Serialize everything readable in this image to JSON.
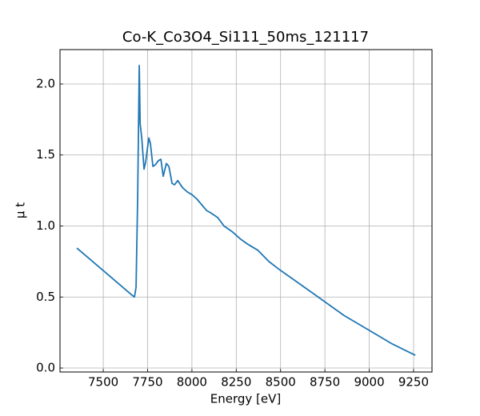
{
  "chart_data": {
    "type": "line",
    "title": "Co-K_Co3O4_Si111_50ms_121117",
    "x_label": "Energy [eV]",
    "y_label": "μ t",
    "x": [
      7351,
      7662,
      7676,
      7685,
      7694,
      7703,
      7708,
      7717,
      7730,
      7739,
      7757,
      7766,
      7780,
      7793,
      7811,
      7825,
      7838,
      7856,
      7870,
      7888,
      7902,
      7920,
      7947,
      7974,
      8001,
      8028,
      8055,
      8082,
      8109,
      8145,
      8181,
      8227,
      8272,
      8317,
      8371,
      8434,
      8497,
      8588,
      8723,
      8858,
      8994,
      9129,
      9260
    ],
    "series": [
      {
        "name": "data",
        "color": "#1f77b4",
        "values": [
          0.845,
          0.513,
          0.5,
          0.57,
          1.2,
          2.13,
          1.72,
          1.62,
          1.4,
          1.45,
          1.62,
          1.58,
          1.42,
          1.43,
          1.46,
          1.47,
          1.35,
          1.44,
          1.42,
          1.3,
          1.29,
          1.32,
          1.27,
          1.24,
          1.22,
          1.19,
          1.15,
          1.11,
          1.09,
          1.06,
          1.0,
          0.96,
          0.91,
          0.87,
          0.83,
          0.75,
          0.69,
          0.61,
          0.49,
          0.37,
          0.27,
          0.17,
          0.09
        ]
      }
    ],
    "xlim": [
      7256,
      9354
    ],
    "ylim": [
      -0.028,
      2.242
    ],
    "xticks": [
      7500,
      7750,
      8000,
      8250,
      8500,
      8750,
      9000,
      9250
    ],
    "yticks": [
      {
        "value": 0,
        "label": "0.0"
      },
      0.5,
      {
        "value": 1,
        "label": "1.0"
      },
      1.5,
      {
        "value": 2,
        "label": "2.0"
      }
    ],
    "grid": true
  }
}
